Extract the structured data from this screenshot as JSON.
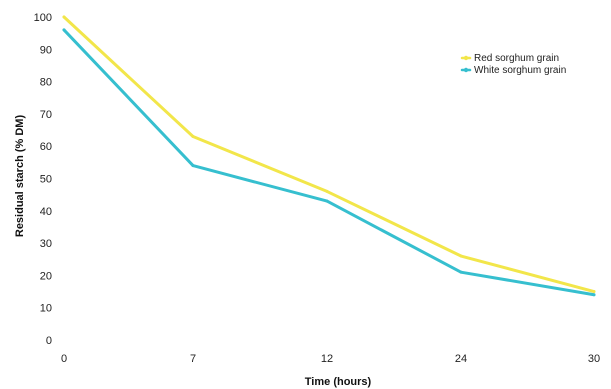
{
  "chart_data": {
    "type": "line",
    "title": "",
    "xlabel": "Time (hours)",
    "ylabel": "Residual starch (% DM)",
    "x": [
      0,
      7,
      12,
      24,
      30
    ],
    "xticks": [
      "0",
      "7",
      "12",
      "24",
      "30"
    ],
    "yticks": [
      "0",
      "10",
      "20",
      "30",
      "40",
      "50",
      "60",
      "70",
      "80",
      "90",
      "100"
    ],
    "ylim": [
      0,
      100
    ],
    "grid": false,
    "legend_position": "top-right",
    "series": [
      {
        "name": "Red sorghum grain",
        "color": "#f2e64a",
        "values": [
          100,
          63,
          46,
          26,
          15
        ]
      },
      {
        "name": "White sorghum grain",
        "color": "#36bfcf",
        "values": [
          96,
          54,
          43,
          21,
          14
        ]
      }
    ]
  }
}
